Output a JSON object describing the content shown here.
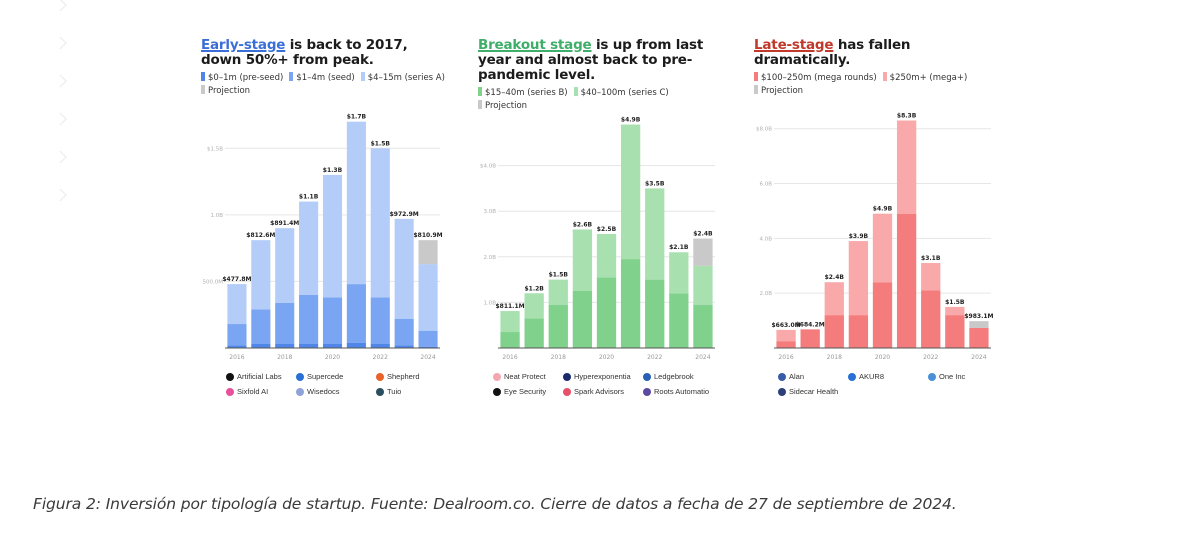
{
  "sidebar": {
    "chevron_count": 6,
    "icon": "chevron-right-icon"
  },
  "caption": "Figura 2: Inversión por tipología de startup. Fuente: Dealroom.co. Cierre de datos a fecha de 27 de septiembre de 2024.",
  "panels": [
    {
      "id": "early",
      "title_highlight": "Early-stage",
      "title_rest": " is back to 2017, down 50%+ from peak.",
      "highlight_color": "#3b6fd8",
      "legend": [
        {
          "label": "$0–1m (pre-seed)",
          "color": "#4f86e8"
        },
        {
          "label": "$1–4m (seed)",
          "color": "#7aa5f2"
        },
        {
          "label": "$4–15m (series A)",
          "color": "#b3cdf8"
        },
        {
          "label": "Projection",
          "color": "#c9c9c9"
        }
      ],
      "companies": [
        {
          "name": "Artificial Labs",
          "color": "#111111"
        },
        {
          "name": "Supercede",
          "color": "#2a6fd6"
        },
        {
          "name": "Shepherd",
          "color": "#e8632b"
        },
        {
          "name": "Sixfold AI",
          "color": "#e8509a"
        },
        {
          "name": "Wisedocs",
          "color": "#8fa3d8"
        },
        {
          "name": "Tuio",
          "color": "#2b4f5e"
        }
      ]
    },
    {
      "id": "breakout",
      "title_highlight": "Breakout stage",
      "title_rest": " is up from last year and almost back to pre-pandemic level.",
      "highlight_color": "#3fae6a",
      "legend": [
        {
          "label": "$15–40m (series B)",
          "color": "#7fd18c"
        },
        {
          "label": "$40–100m (series C)",
          "color": "#a9e0b0"
        },
        {
          "label": "Projection",
          "color": "#c9c9c9"
        }
      ],
      "companies": [
        {
          "name": "Neat Protect",
          "color": "#f4a7b0"
        },
        {
          "name": "Hyperexponentia",
          "color": "#1a2a6c"
        },
        {
          "name": "Ledgebrook",
          "color": "#2a5fb8"
        },
        {
          "name": "Eye Security",
          "color": "#111111"
        },
        {
          "name": "Spark Advisors",
          "color": "#e8506a"
        },
        {
          "name": "Roots Automatio",
          "color": "#5b4aa0"
        }
      ]
    },
    {
      "id": "late",
      "title_highlight": "Late-stage",
      "title_rest": " has fallen dramatically.",
      "highlight_color": "#c0392b",
      "legend": [
        {
          "label": "$100–250m (mega rounds)",
          "color": "#f47c7c"
        },
        {
          "label": "$250m+ (mega+)",
          "color": "#f9a9a9"
        },
        {
          "label": "Projection",
          "color": "#c9c9c9"
        }
      ],
      "companies": [
        {
          "name": "Alan",
          "color": "#3a5ba8"
        },
        {
          "name": "AKUR8",
          "color": "#2a6fd6"
        },
        {
          "name": "One Inc",
          "color": "#4a90d9"
        },
        {
          "name": "Sidecar Health",
          "color": "#2b3f7a"
        }
      ]
    }
  ],
  "chart_data": [
    {
      "type": "bar",
      "stacked": true,
      "title": "Early-stage is back to 2017, down 50%+ from peak.",
      "categories": [
        "2016",
        "2017",
        "2018",
        "2019",
        "2020",
        "2021",
        "2022",
        "2023",
        "2024"
      ],
      "x_tick_labels": [
        "2016",
        "2018",
        "2020",
        "2022",
        "2024"
      ],
      "unit": "USD billions",
      "ylim": [
        0,
        1.75
      ],
      "y_ticks": [
        {
          "value": 0.5,
          "label": "500.0M"
        },
        {
          "value": 1.0,
          "label": "1.0B"
        },
        {
          "value": 1.5,
          "label": "$1.5B"
        }
      ],
      "grid": true,
      "series": [
        {
          "name": "$0–1m (pre-seed)",
          "color": "#4f86e8",
          "values": [
            0.02,
            0.03,
            0.03,
            0.03,
            0.03,
            0.04,
            0.03,
            0.02,
            0.01
          ]
        },
        {
          "name": "$1–4m (seed)",
          "color": "#7aa5f2",
          "values": [
            0.16,
            0.26,
            0.31,
            0.37,
            0.35,
            0.44,
            0.35,
            0.2,
            0.12
          ]
        },
        {
          "name": "$4–15m (series A)",
          "color": "#b3cdf8",
          "values": [
            0.3,
            0.52,
            0.56,
            0.7,
            0.92,
            1.22,
            1.12,
            0.75,
            0.5
          ]
        },
        {
          "name": "Projection",
          "color": "#c9c9c9",
          "values": [
            0,
            0,
            0,
            0,
            0,
            0,
            0,
            0,
            0.18
          ]
        }
      ],
      "totals": [
        0.4778,
        0.8126,
        0.8914,
        1.1,
        1.3,
        1.7,
        1.5,
        0.9729,
        0.8109
      ],
      "data_labels": [
        "$477.8M",
        "$812.6M",
        "$891.4M",
        "$1.1B",
        "$1.3B",
        "$1.7B",
        "$1.5B",
        "$972.9M",
        "$810.9M"
      ]
    },
    {
      "type": "bar",
      "stacked": true,
      "title": "Breakout stage is up from last year and almost back to pre-pandemic level.",
      "categories": [
        "2016",
        "2017",
        "2018",
        "2019",
        "2020",
        "2021",
        "2022",
        "2023",
        "2024"
      ],
      "x_tick_labels": [
        "2016",
        "2018",
        "2020",
        "2022",
        "2024"
      ],
      "unit": "USD billions",
      "ylim": [
        0,
        5.0
      ],
      "y_ticks": [
        {
          "value": 1.0,
          "label": "1.0B"
        },
        {
          "value": 2.0,
          "label": "2.0B"
        },
        {
          "value": 3.0,
          "label": "3.0B"
        },
        {
          "value": 4.0,
          "label": "$4.0B"
        }
      ],
      "grid": true,
      "series": [
        {
          "name": "$15–40m (series B)",
          "color": "#7fd18c",
          "values": [
            0.35,
            0.65,
            0.95,
            1.25,
            1.55,
            1.95,
            1.5,
            1.2,
            0.95
          ]
        },
        {
          "name": "$40–100m (series C)",
          "color": "#a9e0b0",
          "values": [
            0.46,
            0.55,
            0.55,
            1.35,
            0.95,
            2.95,
            2.0,
            0.9,
            0.85
          ]
        },
        {
          "name": "Projection",
          "color": "#c9c9c9",
          "values": [
            0,
            0,
            0,
            0,
            0,
            0,
            0,
            0,
            0.6
          ]
        }
      ],
      "totals": [
        0.8111,
        1.2,
        1.5,
        2.6,
        2.5,
        4.9,
        3.5,
        2.1,
        2.4
      ],
      "data_labels": [
        "$811.1M",
        "$1.2B",
        "$1.5B",
        "$2.6B",
        "$2.5B",
        "$4.9B",
        "$3.5B",
        "$2.1B",
        "$2.4B"
      ]
    },
    {
      "type": "bar",
      "stacked": true,
      "title": "Late-stage has fallen dramatically.",
      "categories": [
        "2016",
        "2017",
        "2018",
        "2019",
        "2020",
        "2021",
        "2022",
        "2023",
        "2024"
      ],
      "x_tick_labels": [
        "2016",
        "2018",
        "2020",
        "2022",
        "2024"
      ],
      "unit": "USD billions",
      "ylim": [
        0,
        8.5
      ],
      "y_ticks": [
        {
          "value": 2.0,
          "label": "2.0B"
        },
        {
          "value": 4.0,
          "label": "4.0B"
        },
        {
          "value": 6.0,
          "label": "6.0B"
        },
        {
          "value": 8.0,
          "label": "$8.0B"
        }
      ],
      "grid": true,
      "series": [
        {
          "name": "$100–250m (mega rounds)",
          "color": "#f47c7c",
          "values": [
            0.25,
            0.68,
            1.2,
            1.2,
            2.4,
            4.9,
            2.1,
            1.2,
            0.73
          ]
        },
        {
          "name": "$250m+ (mega+)",
          "color": "#f9a9a9",
          "values": [
            0.41,
            0.0,
            1.2,
            2.7,
            2.5,
            3.4,
            1.0,
            0.3,
            0.0
          ]
        },
        {
          "name": "Projection",
          "color": "#c9c9c9",
          "values": [
            0,
            0,
            0,
            0,
            0,
            0,
            0,
            0,
            0.25
          ]
        }
      ],
      "totals": [
        0.663,
        0.6842,
        2.4,
        3.9,
        4.9,
        8.3,
        3.1,
        1.5,
        0.9831
      ],
      "data_labels": [
        "$663.0M",
        "$684.2M",
        "$2.4B",
        "$3.9B",
        "$4.9B",
        "$8.3B",
        "$3.1B",
        "$1.5B",
        "$983.1M"
      ]
    }
  ]
}
